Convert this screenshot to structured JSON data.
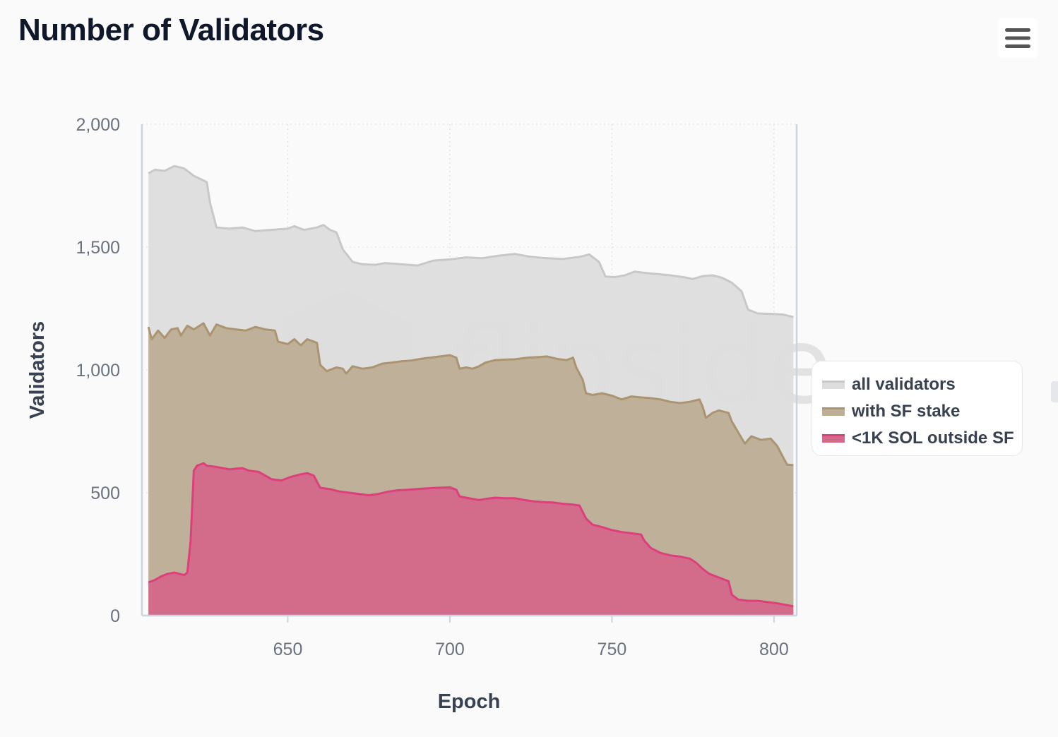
{
  "title": "Number of Validators",
  "menu": {
    "icon": "hamburger-menu-icon"
  },
  "watermark": "flipside",
  "colors": {
    "all": "#dddddd",
    "all_line": "#c8c8c8",
    "sf": "#bdae97",
    "sf_line": "#ab946f",
    "low": "#d4698a",
    "low_line": "#dd3f7c",
    "axis": "#cbd5e1",
    "grid": "#e2e4e8",
    "tick": "#6b7280",
    "label": "#374151"
  },
  "chart_data": {
    "type": "area",
    "title": "Number of Validators",
    "xlabel": "Epoch",
    "ylabel": "Validators",
    "xlim": [
      605,
      807
    ],
    "ylim": [
      0,
      2000
    ],
    "xticks": [
      650,
      700,
      750,
      800
    ],
    "xtick_labels": [
      "650",
      "700",
      "750",
      "800"
    ],
    "yticks": [
      0,
      500,
      1000,
      1500,
      2000
    ],
    "ytick_labels": [
      "0",
      "500",
      "1,000",
      "1,500",
      "2,000"
    ],
    "grid": true,
    "legend_position": "right",
    "series": [
      {
        "name": "all validators",
        "points": [
          [
            607,
            1800
          ],
          [
            609,
            1815
          ],
          [
            612,
            1810
          ],
          [
            615,
            1830
          ],
          [
            618,
            1820
          ],
          [
            621,
            1790
          ],
          [
            625,
            1765
          ],
          [
            626,
            1680
          ],
          [
            628,
            1580
          ],
          [
            632,
            1575
          ],
          [
            636,
            1580
          ],
          [
            640,
            1565
          ],
          [
            645,
            1570
          ],
          [
            650,
            1575
          ],
          [
            652,
            1585
          ],
          [
            655,
            1570
          ],
          [
            659,
            1580
          ],
          [
            661,
            1590
          ],
          [
            663,
            1570
          ],
          [
            665,
            1560
          ],
          [
            667,
            1490
          ],
          [
            670,
            1440
          ],
          [
            673,
            1430
          ],
          [
            677,
            1428
          ],
          [
            680,
            1435
          ],
          [
            685,
            1430
          ],
          [
            690,
            1425
          ],
          [
            695,
            1445
          ],
          [
            700,
            1450
          ],
          [
            705,
            1458
          ],
          [
            710,
            1455
          ],
          [
            715,
            1465
          ],
          [
            720,
            1472
          ],
          [
            725,
            1460
          ],
          [
            730,
            1455
          ],
          [
            735,
            1452
          ],
          [
            740,
            1460
          ],
          [
            743,
            1470
          ],
          [
            746,
            1440
          ],
          [
            748,
            1380
          ],
          [
            751,
            1378
          ],
          [
            754,
            1385
          ],
          [
            757,
            1400
          ],
          [
            760,
            1395
          ],
          [
            764,
            1390
          ],
          [
            768,
            1385
          ],
          [
            772,
            1378
          ],
          [
            775,
            1370
          ],
          [
            778,
            1382
          ],
          [
            781,
            1385
          ],
          [
            784,
            1375
          ],
          [
            787,
            1355
          ],
          [
            790,
            1320
          ],
          [
            792,
            1245
          ],
          [
            795,
            1230
          ],
          [
            800,
            1228
          ],
          [
            803,
            1225
          ],
          [
            806,
            1215
          ]
        ]
      },
      {
        "name": "with SF stake",
        "points": [
          [
            607,
            1175
          ],
          [
            608,
            1125
          ],
          [
            610,
            1160
          ],
          [
            612,
            1130
          ],
          [
            614,
            1165
          ],
          [
            616,
            1170
          ],
          [
            617,
            1140
          ],
          [
            619,
            1180
          ],
          [
            621,
            1165
          ],
          [
            624,
            1190
          ],
          [
            626,
            1140
          ],
          [
            628,
            1185
          ],
          [
            631,
            1170
          ],
          [
            634,
            1165
          ],
          [
            637,
            1160
          ],
          [
            640,
            1175
          ],
          [
            643,
            1165
          ],
          [
            646,
            1160
          ],
          [
            647,
            1115
          ],
          [
            650,
            1105
          ],
          [
            652,
            1125
          ],
          [
            654,
            1100
          ],
          [
            656,
            1125
          ],
          [
            659,
            1110
          ],
          [
            660,
            1020
          ],
          [
            662,
            995
          ],
          [
            665,
            1010
          ],
          [
            667,
            1005
          ],
          [
            668,
            985
          ],
          [
            670,
            1015
          ],
          [
            673,
            1005
          ],
          [
            676,
            1010
          ],
          [
            679,
            1025
          ],
          [
            682,
            1030
          ],
          [
            685,
            1035
          ],
          [
            688,
            1038
          ],
          [
            691,
            1045
          ],
          [
            694,
            1050
          ],
          [
            697,
            1055
          ],
          [
            700,
            1060
          ],
          [
            702,
            1050
          ],
          [
            703,
            1005
          ],
          [
            705,
            1010
          ],
          [
            707,
            1005
          ],
          [
            709,
            1015
          ],
          [
            711,
            1030
          ],
          [
            714,
            1040
          ],
          [
            717,
            1042
          ],
          [
            720,
            1043
          ],
          [
            724,
            1050
          ],
          [
            727,
            1052
          ],
          [
            730,
            1055
          ],
          [
            733,
            1045
          ],
          [
            736,
            1040
          ],
          [
            738,
            1050
          ],
          [
            739,
            1010
          ],
          [
            741,
            960
          ],
          [
            742,
            905
          ],
          [
            744,
            898
          ],
          [
            747,
            905
          ],
          [
            750,
            895
          ],
          [
            753,
            880
          ],
          [
            756,
            892
          ],
          [
            759,
            888
          ],
          [
            762,
            885
          ],
          [
            765,
            880
          ],
          [
            768,
            870
          ],
          [
            771,
            865
          ],
          [
            774,
            870
          ],
          [
            777,
            880
          ],
          [
            778,
            850
          ],
          [
            779,
            805
          ],
          [
            781,
            825
          ],
          [
            783,
            835
          ],
          [
            786,
            825
          ],
          [
            787,
            790
          ],
          [
            789,
            745
          ],
          [
            791,
            700
          ],
          [
            793,
            730
          ],
          [
            796,
            715
          ],
          [
            799,
            720
          ],
          [
            801,
            690
          ],
          [
            804,
            615
          ],
          [
            806,
            612
          ]
        ]
      },
      {
        "name": "<1K SOL outside SF",
        "points": [
          [
            607,
            135
          ],
          [
            609,
            145
          ],
          [
            611,
            160
          ],
          [
            613,
            170
          ],
          [
            615,
            175
          ],
          [
            618,
            165
          ],
          [
            619,
            175
          ],
          [
            620,
            300
          ],
          [
            621,
            590
          ],
          [
            622,
            610
          ],
          [
            623,
            615
          ],
          [
            624,
            620
          ],
          [
            625,
            610
          ],
          [
            628,
            605
          ],
          [
            630,
            600
          ],
          [
            632,
            595
          ],
          [
            634,
            598
          ],
          [
            636,
            600
          ],
          [
            638,
            590
          ],
          [
            641,
            585
          ],
          [
            643,
            570
          ],
          [
            645,
            555
          ],
          [
            648,
            550
          ],
          [
            651,
            565
          ],
          [
            654,
            575
          ],
          [
            656,
            580
          ],
          [
            658,
            570
          ],
          [
            660,
            520
          ],
          [
            663,
            515
          ],
          [
            666,
            505
          ],
          [
            669,
            500
          ],
          [
            672,
            495
          ],
          [
            675,
            490
          ],
          [
            678,
            495
          ],
          [
            681,
            505
          ],
          [
            684,
            510
          ],
          [
            687,
            512
          ],
          [
            690,
            515
          ],
          [
            693,
            518
          ],
          [
            696,
            520
          ],
          [
            700,
            522
          ],
          [
            702,
            512
          ],
          [
            703,
            485
          ],
          [
            705,
            480
          ],
          [
            707,
            475
          ],
          [
            709,
            470
          ],
          [
            711,
            475
          ],
          [
            714,
            480
          ],
          [
            717,
            478
          ],
          [
            720,
            478
          ],
          [
            723,
            470
          ],
          [
            726,
            465
          ],
          [
            729,
            462
          ],
          [
            732,
            460
          ],
          [
            735,
            455
          ],
          [
            738,
            452
          ],
          [
            740,
            448
          ],
          [
            742,
            395
          ],
          [
            744,
            370
          ],
          [
            747,
            360
          ],
          [
            750,
            348
          ],
          [
            753,
            340
          ],
          [
            756,
            335
          ],
          [
            759,
            330
          ],
          [
            760,
            305
          ],
          [
            762,
            275
          ],
          [
            765,
            255
          ],
          [
            768,
            245
          ],
          [
            771,
            240
          ],
          [
            774,
            232
          ],
          [
            776,
            215
          ],
          [
            778,
            190
          ],
          [
            780,
            170
          ],
          [
            783,
            155
          ],
          [
            786,
            140
          ],
          [
            787,
            85
          ],
          [
            789,
            65
          ],
          [
            792,
            60
          ],
          [
            795,
            60
          ],
          [
            798,
            55
          ],
          [
            801,
            50
          ],
          [
            803,
            45
          ],
          [
            806,
            38
          ]
        ]
      }
    ]
  }
}
